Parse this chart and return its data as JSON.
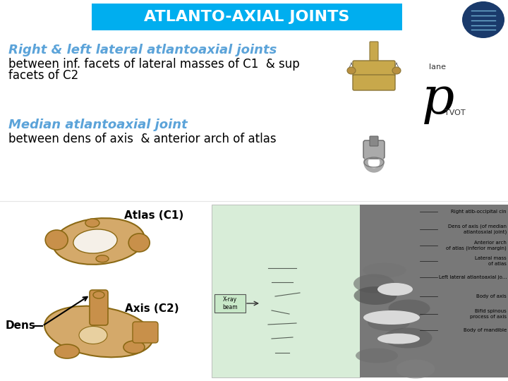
{
  "title": "ATLANTO-AXIAL JOINTS",
  "title_bg_color": "#00AEEF",
  "title_text_color": "#FFFFFF",
  "background_color": "#FFFFFF",
  "heading1": "Right & left lateral atlantoaxial joints",
  "heading1_color": "#5BA3D9",
  "heading1_fontsize": 13,
  "text1_line1": "between inf. facets of lateral masses of C1  & sup",
  "text1_line2": "facets of C2",
  "text1_color": "#000000",
  "text1_fontsize": 12,
  "heading2": "Median atlantoaxial joint",
  "heading2_color": "#5BA3D9",
  "heading2_fontsize": 13,
  "text2": "between dens of axis  & anterior arch of atlas",
  "text2_color": "#000000",
  "text2_fontsize": 12,
  "label_atlas": "Atlas (C1)",
  "label_axis": "Axis (C2)",
  "label_dens": "Dens",
  "label_lane": "lane",
  "label_pivot": "TVOT",
  "label_p": "p",
  "atlas_label_fontsize": 11,
  "axis_label_fontsize": 11,
  "dens_label_fontsize": 11,
  "xray_labels": [
    "Right atlb-occipital cin",
    "Dens of axis (of median\natlantosxial joint)",
    "Anterior arch\nof atlas (inferior margin)",
    "Lateral mass\nof atlas",
    "Left lateral atlantoaxial jo...",
    "Body of axis",
    "Bifid spinous\nprocess of axis",
    "Body of mandible"
  ],
  "green_bg": "#D8EDD8",
  "xray_bg": "#787878"
}
